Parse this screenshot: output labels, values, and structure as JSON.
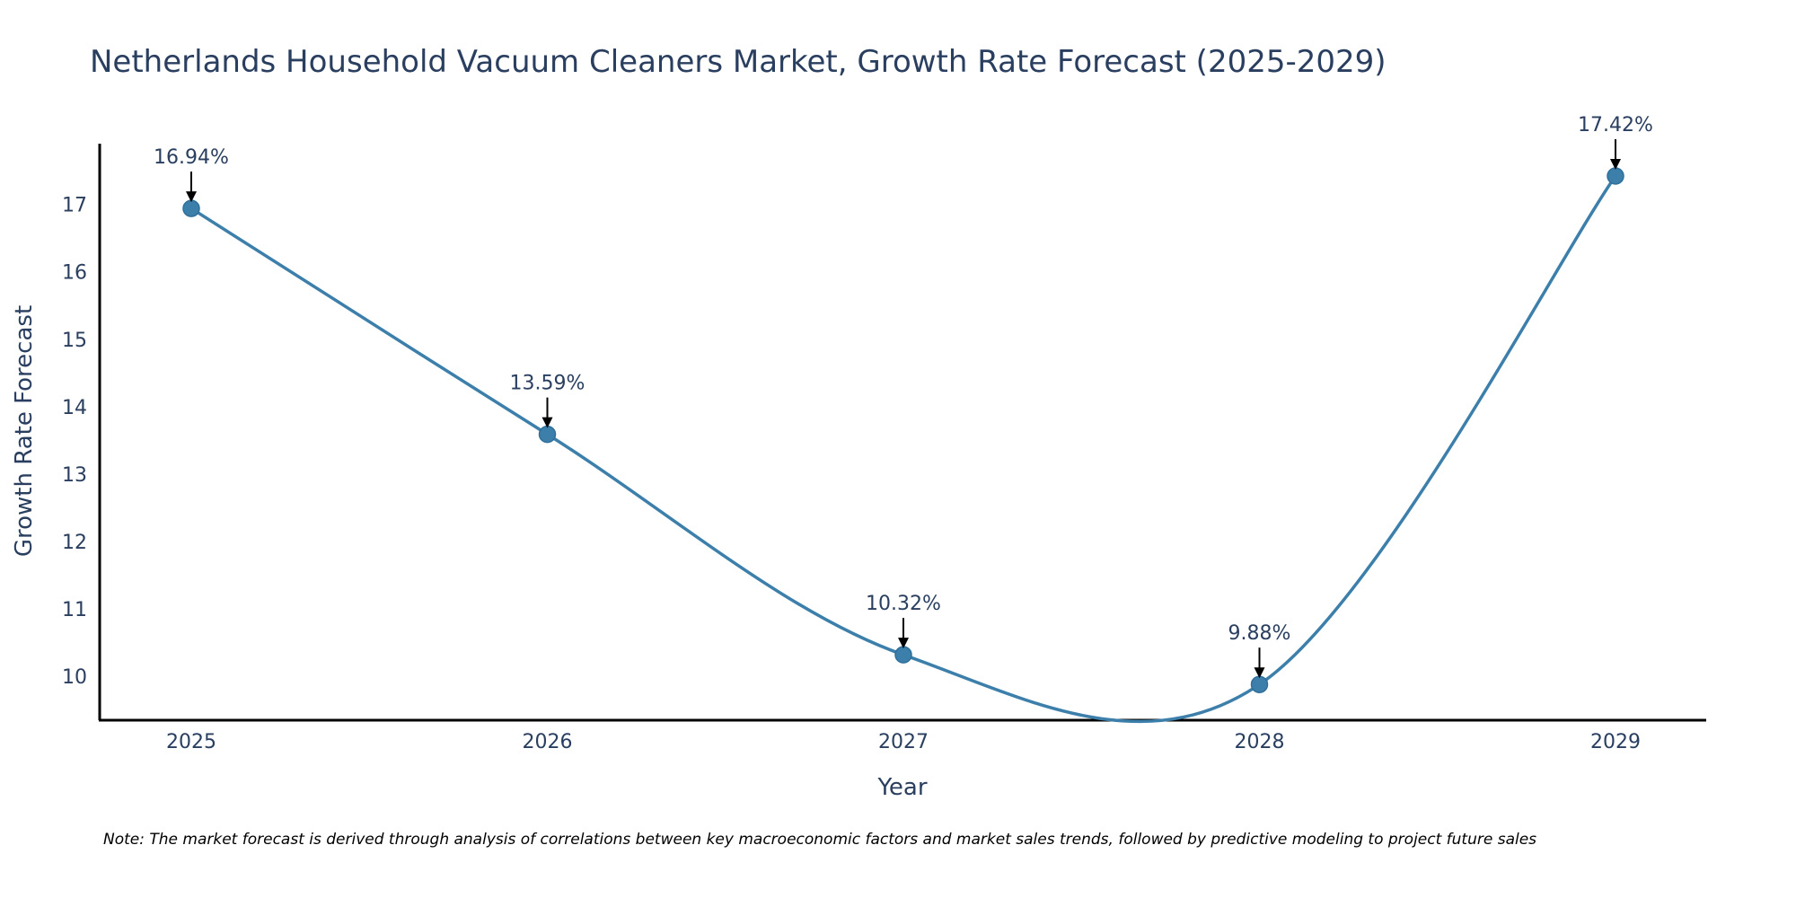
{
  "chart_data": {
    "type": "line",
    "title": "Netherlands Household Vacuum Cleaners Market, Growth Rate Forecast (2025-2029)",
    "xlabel": "Year",
    "ylabel": "Growth Rate Forecast",
    "categories": [
      "2025",
      "2026",
      "2027",
      "2028",
      "2029"
    ],
    "series": [
      {
        "name": "Growth Rate Forecast",
        "values": [
          16.94,
          13.59,
          10.32,
          9.88,
          17.42
        ],
        "labels": [
          "16.94%",
          "13.59%",
          "10.32%",
          "9.88%",
          "17.42%"
        ]
      }
    ],
    "yticks": [
      "10",
      "11",
      "12",
      "13",
      "14",
      "15",
      "16",
      "17"
    ],
    "ylim": [
      9.35,
      17.9
    ],
    "grid": false,
    "line_color": "#3d7fab",
    "marker_color": "#3d7fab",
    "note": "Note: The market forecast is derived through analysis of correlations between key macroeconomic factors and market sales trends, followed by predictive modeling to project future sales"
  }
}
